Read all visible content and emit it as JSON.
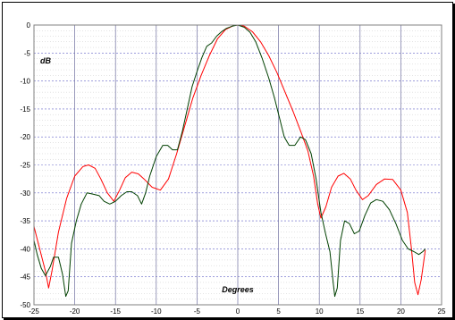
{
  "chart_data": {
    "type": "line",
    "xlabel": "Degrees",
    "ylabel": "dB",
    "xlim": [
      -25,
      25
    ],
    "ylim": [
      -50,
      0
    ],
    "x_ticks": [
      -25,
      -20,
      -15,
      -10,
      -5,
      0,
      5,
      10,
      15,
      20,
      25
    ],
    "y_ticks": [
      0,
      -5,
      -10,
      -15,
      -20,
      -25,
      -30,
      -35,
      -40,
      -45,
      -50
    ],
    "grid": true,
    "legend": "none",
    "series": [
      {
        "color": "#ff0000",
        "points": [
          [
            -25,
            -36
          ],
          [
            -24.3,
            -40
          ],
          [
            -23.6,
            -44
          ],
          [
            -23.2,
            -47
          ],
          [
            -22.8,
            -44
          ],
          [
            -22,
            -37
          ],
          [
            -21,
            -31
          ],
          [
            -20,
            -27
          ],
          [
            -19,
            -25.3
          ],
          [
            -18.3,
            -25
          ],
          [
            -17.5,
            -25.6
          ],
          [
            -16.8,
            -27.5
          ],
          [
            -16,
            -30
          ],
          [
            -15.2,
            -31.5
          ],
          [
            -14.5,
            -29.5
          ],
          [
            -13.8,
            -27.3
          ],
          [
            -13,
            -26.3
          ],
          [
            -12.2,
            -26.6
          ],
          [
            -11.5,
            -27.5
          ],
          [
            -10.5,
            -29
          ],
          [
            -9.5,
            -29.5
          ],
          [
            -8.5,
            -27.5
          ],
          [
            -7.5,
            -23
          ],
          [
            -6.5,
            -18
          ],
          [
            -5.5,
            -13
          ],
          [
            -4.5,
            -9
          ],
          [
            -3.5,
            -5.5
          ],
          [
            -2.5,
            -2.5
          ],
          [
            -1.5,
            -0.8
          ],
          [
            -0.5,
            -0.1
          ],
          [
            0,
            0
          ],
          [
            0.8,
            -0.2
          ],
          [
            1.8,
            -1.2
          ],
          [
            2.8,
            -3
          ],
          [
            3.8,
            -5.5
          ],
          [
            4.8,
            -8.5
          ],
          [
            5.8,
            -12
          ],
          [
            6.8,
            -15.5
          ],
          [
            7.8,
            -19.3
          ],
          [
            8.6,
            -22.5
          ],
          [
            9.3,
            -27
          ],
          [
            9.8,
            -32
          ],
          [
            10.2,
            -34.5
          ],
          [
            10.8,
            -32.5
          ],
          [
            11.5,
            -29
          ],
          [
            12.3,
            -27
          ],
          [
            13,
            -26.5
          ],
          [
            13.8,
            -27.5
          ],
          [
            14.5,
            -29.5
          ],
          [
            15.3,
            -31.2
          ],
          [
            16,
            -30.5
          ],
          [
            17,
            -28.5
          ],
          [
            18,
            -27.5
          ],
          [
            19,
            -27.6
          ],
          [
            20,
            -29.5
          ],
          [
            20.8,
            -33.5
          ],
          [
            21.3,
            -40
          ],
          [
            21.7,
            -46
          ],
          [
            22.1,
            -48.2
          ],
          [
            22.5,
            -45.5
          ],
          [
            23,
            -40.2
          ]
        ]
      },
      {
        "color": "#004000",
        "points": [
          [
            -25,
            -38.5
          ],
          [
            -24.6,
            -41
          ],
          [
            -24.1,
            -43.5
          ],
          [
            -23.6,
            -44.8
          ],
          [
            -23,
            -43.2
          ],
          [
            -22.6,
            -41.5
          ],
          [
            -22,
            -41.5
          ],
          [
            -21.5,
            -44.5
          ],
          [
            -21.1,
            -48.5
          ],
          [
            -20.8,
            -47.5
          ],
          [
            -20.4,
            -39
          ],
          [
            -19.8,
            -35
          ],
          [
            -19.2,
            -32
          ],
          [
            -18.5,
            -30
          ],
          [
            -17.8,
            -30.2
          ],
          [
            -17,
            -30.5
          ],
          [
            -16.4,
            -31.5
          ],
          [
            -15.7,
            -32
          ],
          [
            -15,
            -31.5
          ],
          [
            -14.3,
            -30.5
          ],
          [
            -13.6,
            -29.8
          ],
          [
            -13,
            -29.8
          ],
          [
            -12.3,
            -30.5
          ],
          [
            -11.8,
            -32
          ],
          [
            -11.3,
            -30
          ],
          [
            -10.8,
            -27
          ],
          [
            -10,
            -23.5
          ],
          [
            -9.2,
            -21.5
          ],
          [
            -8.6,
            -21.5
          ],
          [
            -8,
            -22.3
          ],
          [
            -7.4,
            -22.3
          ],
          [
            -6.8,
            -19
          ],
          [
            -6.2,
            -15
          ],
          [
            -5.6,
            -11
          ],
          [
            -5,
            -8.3
          ],
          [
            -4.4,
            -5.8
          ],
          [
            -3.8,
            -3.8
          ],
          [
            -3.2,
            -3.2
          ],
          [
            -2.6,
            -2
          ],
          [
            -2,
            -1.2
          ],
          [
            -1.4,
            -0.6
          ],
          [
            -0.7,
            -0.2
          ],
          [
            0,
            0
          ],
          [
            0.8,
            -0.4
          ],
          [
            1.5,
            -1.3
          ],
          [
            2.2,
            -3
          ],
          [
            3,
            -6
          ],
          [
            3.8,
            -9.5
          ],
          [
            4.5,
            -13
          ],
          [
            5.1,
            -16.5
          ],
          [
            5.7,
            -20
          ],
          [
            6.3,
            -21.5
          ],
          [
            7,
            -21.5
          ],
          [
            7.7,
            -20
          ],
          [
            8.3,
            -20.5
          ],
          [
            9,
            -23
          ],
          [
            9.6,
            -27.5
          ],
          [
            10.2,
            -33.5
          ],
          [
            10.8,
            -37.5
          ],
          [
            11.3,
            -40.5
          ],
          [
            11.7,
            -46
          ],
          [
            11.9,
            -48.5
          ],
          [
            12.2,
            -47
          ],
          [
            12.6,
            -38.5
          ],
          [
            13.1,
            -35
          ],
          [
            13.7,
            -35.5
          ],
          [
            14.3,
            -37.3
          ],
          [
            14.9,
            -36.8
          ],
          [
            15.6,
            -34
          ],
          [
            16.3,
            -31.8
          ],
          [
            17,
            -31.2
          ],
          [
            17.8,
            -31.5
          ],
          [
            18.6,
            -33
          ],
          [
            19.4,
            -35.5
          ],
          [
            20.2,
            -38.5
          ],
          [
            20.9,
            -40
          ],
          [
            21.6,
            -40.5
          ],
          [
            22.2,
            -41
          ],
          [
            22.7,
            -40.5
          ],
          [
            23,
            -40
          ]
        ]
      }
    ]
  }
}
